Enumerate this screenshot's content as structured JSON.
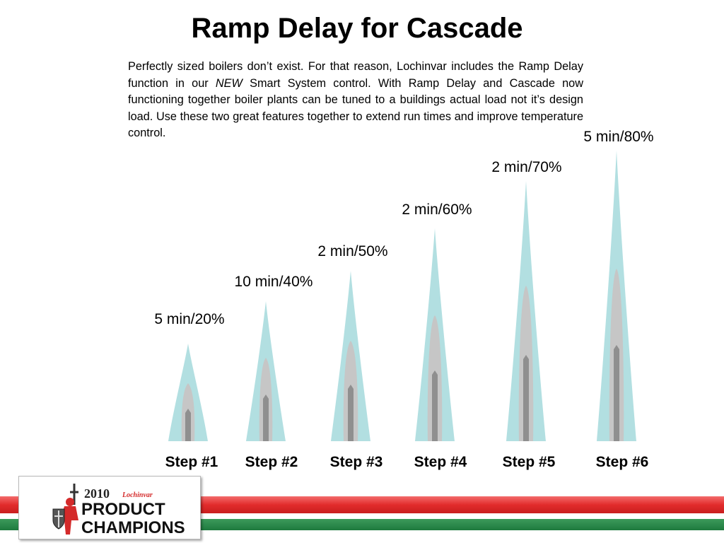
{
  "title": "Ramp Delay for Cascade",
  "intro": {
    "before": "Perfectly sized boilers don’t exist.  For that reason, Lochinvar includes the Ramp Delay function in our ",
    "emphasis": "NEW",
    "after": " Smart System control.  With Ramp Delay and Cascade now functioning together boiler plants can be tuned to a buildings actual load not it’s design load.  Use these two great features together to extend run times and improve temperature control."
  },
  "steps": [
    {
      "label": "Step #1",
      "rate": "5 min/20%"
    },
    {
      "label": "Step #2",
      "rate": "10 min/40%"
    },
    {
      "label": "Step #3",
      "rate": "2 min/50%"
    },
    {
      "label": "Step #4",
      "rate": "2 min/60%"
    },
    {
      "label": "Step #5",
      "rate": "2 min/70%"
    },
    {
      "label": "Step #6",
      "rate": "5 min/80%"
    }
  ],
  "logo": {
    "year": "2010",
    "brand": "Lochinvar",
    "line1": "PRODUCT",
    "line2": "CHAMPIONS"
  },
  "colors": {
    "flame_outer": "#b2dfe1",
    "flame_mid": "#c6c6c6",
    "flame_inner": "#8f8f8f",
    "stripe_red": "#e22c2c",
    "stripe_green": "#1e7a3e",
    "logo_red": "#d42a2a"
  }
}
